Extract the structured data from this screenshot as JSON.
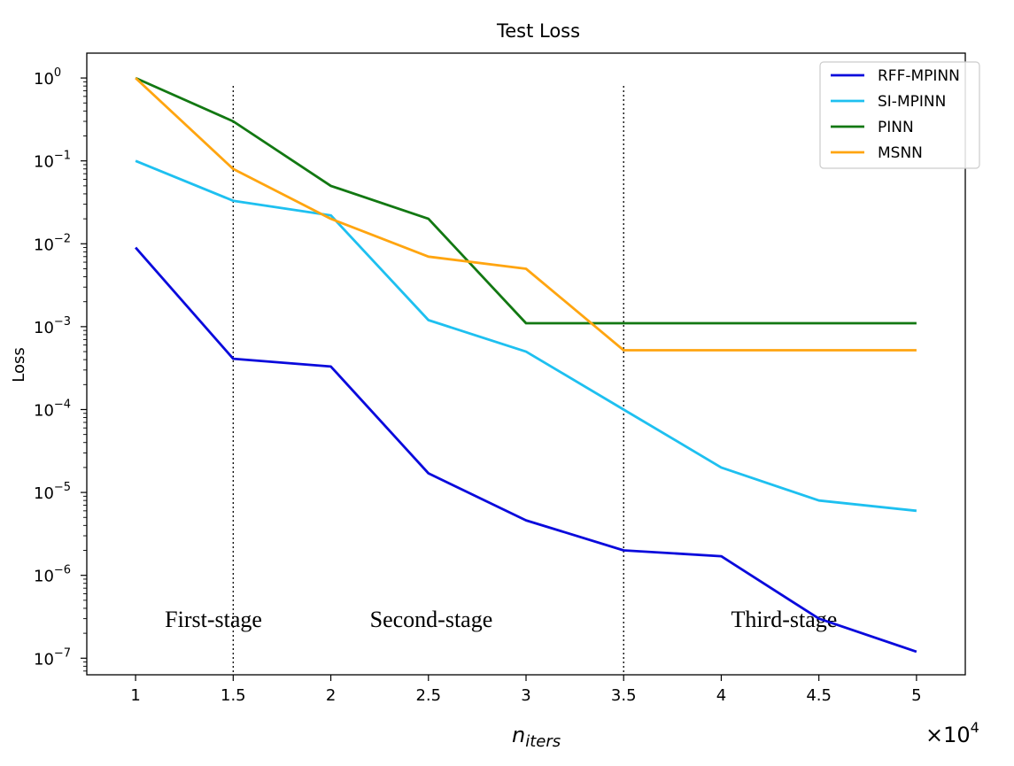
{
  "chart_data": {
    "type": "line",
    "title": "Test Loss",
    "xlabel": "n",
    "xlabel_sub": "iters",
    "ylabel": "Loss",
    "x_multiplier": "×10",
    "x_multiplier_exp": "4",
    "yscale": "log",
    "xlim": [
      0.75,
      5.25
    ],
    "ylim_exp": [
      -7.2,
      0.3
    ],
    "x": [
      1,
      1.5,
      2,
      2.5,
      3,
      3.5,
      4,
      4.5,
      5
    ],
    "x_ticks": [
      {
        "value": 1,
        "label": "1"
      },
      {
        "value": 1.5,
        "label": "1.5"
      },
      {
        "value": 2,
        "label": "2"
      },
      {
        "value": 2.5,
        "label": "2.5"
      },
      {
        "value": 3,
        "label": "3"
      },
      {
        "value": 3.5,
        "label": "3.5"
      },
      {
        "value": 4,
        "label": "4"
      },
      {
        "value": 4.5,
        "label": "4.5"
      },
      {
        "value": 5,
        "label": "5"
      }
    ],
    "y_ticks": [
      {
        "exp": 0,
        "base": "10",
        "sup": "0"
      },
      {
        "exp": -1,
        "base": "10",
        "sup": "−1"
      },
      {
        "exp": -2,
        "base": "10",
        "sup": "−2"
      },
      {
        "exp": -3,
        "base": "10",
        "sup": "−3"
      },
      {
        "exp": -4,
        "base": "10",
        "sup": "−4"
      },
      {
        "exp": -5,
        "base": "10",
        "sup": "−5"
      },
      {
        "exp": -6,
        "base": "10",
        "sup": "−6"
      },
      {
        "exp": -7,
        "base": "10",
        "sup": "−7"
      }
    ],
    "series": [
      {
        "name": "RFF-MPINN",
        "color": "#0a0adc",
        "values": [
          0.009,
          0.00041,
          0.00033,
          1.7e-05,
          4.6e-06,
          2e-06,
          1.7e-06,
          3e-07,
          1.2e-07
        ]
      },
      {
        "name": "SI-MPINN",
        "color": "#1ec0f0",
        "values": [
          0.1,
          0.033,
          0.022,
          0.0012,
          0.0005,
          0.0001,
          2e-05,
          8e-06,
          6e-06
        ]
      },
      {
        "name": "PINN",
        "color": "#127812",
        "values": [
          1.0,
          0.3,
          0.05,
          0.02,
          0.0011,
          0.0011,
          0.0011,
          0.0011,
          0.0011
        ]
      },
      {
        "name": "MSNN",
        "color": "#ffa510",
        "values": [
          1.0,
          0.08,
          0.02,
          0.007,
          0.005,
          0.00052,
          0.00052,
          0.00052,
          0.00052
        ]
      }
    ],
    "stage_lines": [
      1.5,
      3.5
    ],
    "stage_labels": [
      {
        "text": "First-stage",
        "x": 1.15
      },
      {
        "text": "Second-stage",
        "x": 2.2
      },
      {
        "text": "Third-stage",
        "x": 4.05
      }
    ],
    "legend_position": "top-right"
  }
}
